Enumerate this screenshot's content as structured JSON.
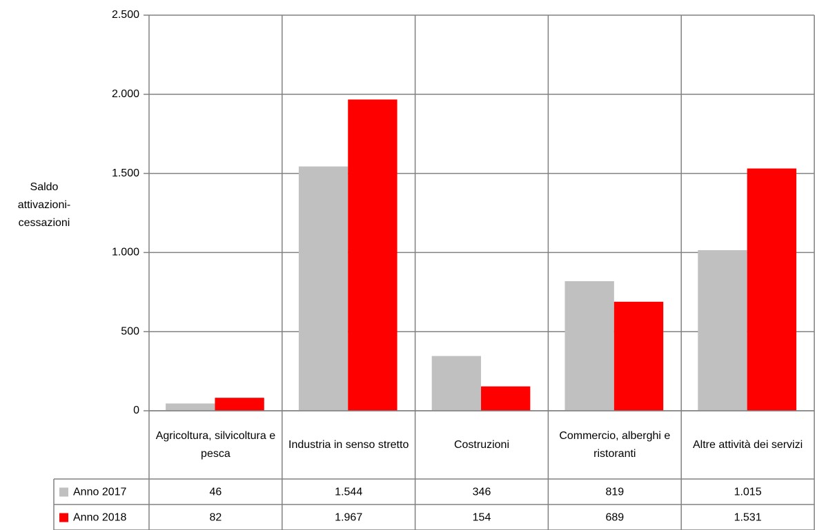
{
  "chart_data": {
    "type": "bar",
    "y_label": "Saldo attivazioni-cessazioni",
    "categories": [
      "Agricoltura, silvicoltura e pesca",
      "Industria in senso stretto",
      "Costruzioni",
      "Commercio, alberghi e ristoranti",
      "Altre attività dei servizi"
    ],
    "series": [
      {
        "name": "Anno 2017",
        "color": "#c0c0c0",
        "values": [
          46,
          1544,
          346,
          819,
          1015
        ],
        "value_labels": [
          "46",
          "1.544",
          "346",
          "819",
          "1.015"
        ]
      },
      {
        "name": "Anno 2018",
        "color": "#ff0000",
        "values": [
          82,
          1967,
          154,
          689,
          1531
        ],
        "value_labels": [
          "82",
          "1.967",
          "154",
          "689",
          "1.531"
        ]
      }
    ],
    "ylim": [
      0,
      2500
    ],
    "yticks": [
      0,
      500,
      {
        "value": 1000,
        "label": "1.000"
      },
      {
        "value": 1500,
        "label": "1.500"
      },
      {
        "value": 2000,
        "label": "2.000"
      },
      {
        "value": 2500,
        "label": "2.500"
      }
    ],
    "grid": true
  }
}
